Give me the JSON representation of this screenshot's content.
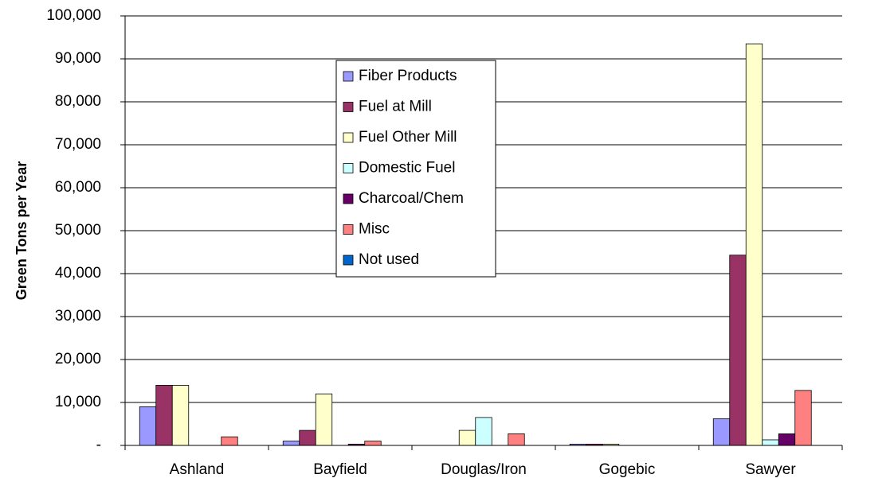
{
  "chart_data": {
    "type": "bar",
    "y_label": "Green Tons per Year",
    "categories": [
      "Ashland",
      "Bayfield",
      "Douglas/Iron",
      "Gogebic",
      "Sawyer"
    ],
    "series": [
      {
        "name": "Fiber Products",
        "color": "#9999ff",
        "values": [
          9000,
          1000,
          0,
          300,
          6200
        ]
      },
      {
        "name": "Fuel at Mill",
        "color": "#993366",
        "values": [
          14000,
          3500,
          0,
          300,
          44300
        ]
      },
      {
        "name": "Fuel Other Mill",
        "color": "#ffffcc",
        "values": [
          14000,
          12000,
          3500,
          300,
          93500
        ]
      },
      {
        "name": "Domestic Fuel",
        "color": "#ccffff",
        "values": [
          0,
          0,
          6500,
          0,
          1300
        ]
      },
      {
        "name": "Charcoal/Chem",
        "color": "#660066",
        "values": [
          0,
          300,
          0,
          0,
          2700
        ]
      },
      {
        "name": "Misc",
        "color": "#ff8080",
        "values": [
          2000,
          1000,
          2700,
          0,
          12800
        ]
      },
      {
        "name": "Not used",
        "color": "#0066cc",
        "values": [
          0,
          0,
          0,
          0,
          0
        ]
      }
    ],
    "ylim": [
      0,
      100000
    ],
    "yticks": [
      {
        "value": 0,
        "label": "-"
      },
      {
        "value": 10000,
        "label": "10,000"
      },
      {
        "value": 20000,
        "label": "20,000"
      },
      {
        "value": 30000,
        "label": "30,000"
      },
      {
        "value": 40000,
        "label": "40,000"
      },
      {
        "value": 50000,
        "label": "50,000"
      },
      {
        "value": 60000,
        "label": "60,000"
      },
      {
        "value": 70000,
        "label": "70,000"
      },
      {
        "value": 80000,
        "label": "80,000"
      },
      {
        "value": 90000,
        "label": "90,000"
      },
      {
        "value": 100000,
        "label": "100,000"
      }
    ],
    "grid": true
  }
}
